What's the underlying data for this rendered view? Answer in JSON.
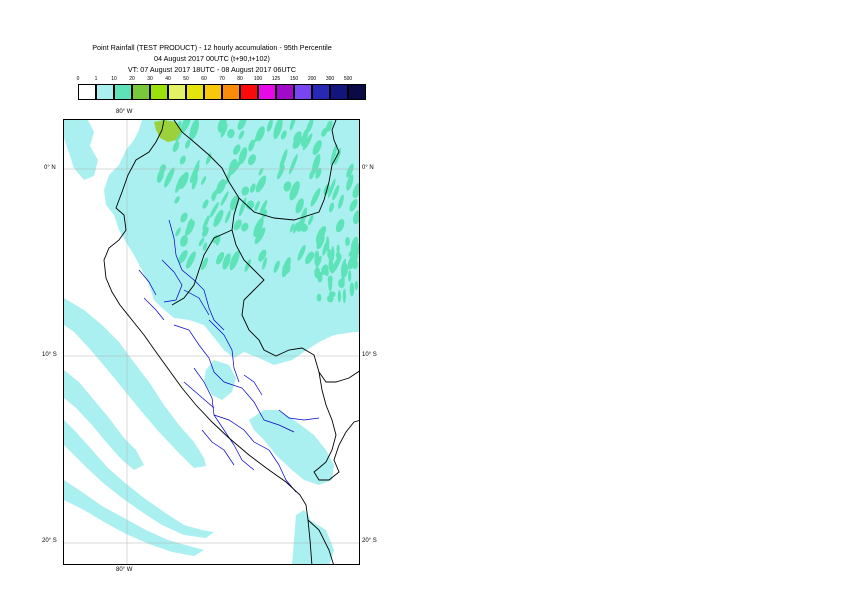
{
  "header": {
    "title_line1": "Point Rainfall (TEST PRODUCT) - 12 hourly accumulation - 95th Percentile",
    "title_line2": "04 August 2017 00UTC (t+90,t+102)",
    "title_line3": "VT: 07 August 2017 18UTC - 08 August 2017 06UTC"
  },
  "legend": {
    "thresholds": [
      "0",
      "1",
      "10",
      "20",
      "30",
      "40",
      "50",
      "60",
      "70",
      "80",
      "100",
      "125",
      "150",
      "200",
      "300",
      "500"
    ],
    "colors": [
      "#ffffff",
      "#aaf0f0",
      "#5ee3b8",
      "#78c83c",
      "#9be10e",
      "#e2f264",
      "#e4e40e",
      "#fac80a",
      "#fa8c0a",
      "#fa0a0a",
      "#e60ae6",
      "#a00ac8",
      "#7846f0",
      "#2828b4",
      "#14147d",
      "#0a0a46"
    ]
  },
  "map": {
    "region": "Peru and surroundings",
    "ocean_color": "#ffffff",
    "rain_light_color": "#aaf0f0",
    "rain_mid_color": "#5ee3b8",
    "rain_heavy_color": "#9bd23c",
    "border_color": "#000000",
    "region_border_color": "#0000c8",
    "graticule_color": "#b4b4b4"
  },
  "axes": {
    "top_lon": "80° W",
    "bottom_lon": "80° W",
    "lat_0": "0° N",
    "lat_10": "10° S",
    "lat_20": "20° S"
  }
}
